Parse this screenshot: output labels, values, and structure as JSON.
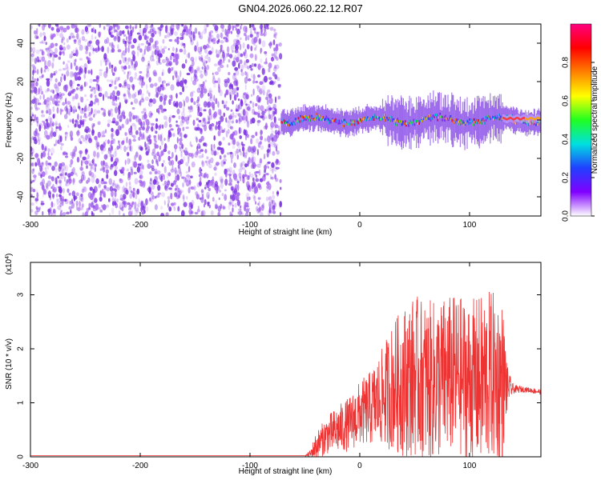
{
  "title": "GN04.2026.060.22.12.R07",
  "colors": {
    "spectrogram_noise": "#7a2fe0",
    "signal_line": "#ee3333",
    "axis": "#000000",
    "grid": "#dddddd"
  },
  "chart_data": [
    {
      "id": "spectrogram",
      "type": "heatmap",
      "xlabel": "Height of straight line (km)",
      "ylabel": "Frequency (Hz)",
      "xlim": [
        -300,
        165
      ],
      "ylim": [
        -50,
        50
      ],
      "x_ticks": [
        -300,
        -200,
        -100,
        0,
        100
      ],
      "y_ticks": [
        -40,
        -20,
        0,
        20,
        40
      ],
      "colorbar": {
        "label": "Normalized spectral amplitude",
        "range": [
          0.0,
          1.0
        ],
        "ticks": [
          0.0,
          0.2,
          0.4,
          0.6,
          0.8
        ],
        "tick_labels": [
          "0.0",
          "0.2",
          "0.4",
          "0.6",
          "0.8"
        ],
        "colormap": [
          "#ffffff",
          "#8000ff",
          "#2040ff",
          "#00e0e0",
          "#20ff20",
          "#ffff00",
          "#ff8000",
          "#ff0000",
          "#ff0080"
        ]
      },
      "regions": [
        {
          "name": "noise",
          "x_range": [
            -300,
            -72
          ],
          "freq_range": [
            -50,
            50
          ],
          "amplitude": 0.05
        },
        {
          "name": "signal",
          "x_range": [
            -72,
            165
          ],
          "center_freq": 0,
          "bandwidth_hz": 6,
          "peak_amplitude": 0.95
        }
      ]
    },
    {
      "id": "snr",
      "type": "line",
      "xlabel": "Height of straight line (km)",
      "ylabel": "SNR (10 * v/v)",
      "y_multiplier": "(x10^4)",
      "xlim": [
        -300,
        165
      ],
      "ylim": [
        0,
        3.6
      ],
      "x_ticks": [
        -300,
        -200,
        -100,
        0,
        100
      ],
      "y_ticks": [
        0,
        1,
        2,
        3
      ],
      "envelope": {
        "x": [
          -300,
          -100,
          -50,
          -45,
          -40,
          -30,
          -20,
          -10,
          0,
          10,
          20,
          30,
          40,
          50,
          60,
          70,
          80,
          90,
          100,
          110,
          120,
          130,
          135,
          140,
          150,
          165
        ],
        "y_mean": [
          0.02,
          0.02,
          0.02,
          0.05,
          0.2,
          0.4,
          0.5,
          0.6,
          0.8,
          0.9,
          1.1,
          1.3,
          1.4,
          1.5,
          1.4,
          1.4,
          1.5,
          1.5,
          1.4,
          1.4,
          1.5,
          1.4,
          1.3,
          1.25,
          1.25,
          1.2
        ],
        "y_spread": [
          0.0,
          0.0,
          0.0,
          0.08,
          0.25,
          0.35,
          0.45,
          0.5,
          0.6,
          0.7,
          0.9,
          1.2,
          1.4,
          1.5,
          1.5,
          1.5,
          1.5,
          1.5,
          1.5,
          1.6,
          1.6,
          1.5,
          0.3,
          0.08,
          0.05,
          0.05
        ]
      }
    }
  ]
}
